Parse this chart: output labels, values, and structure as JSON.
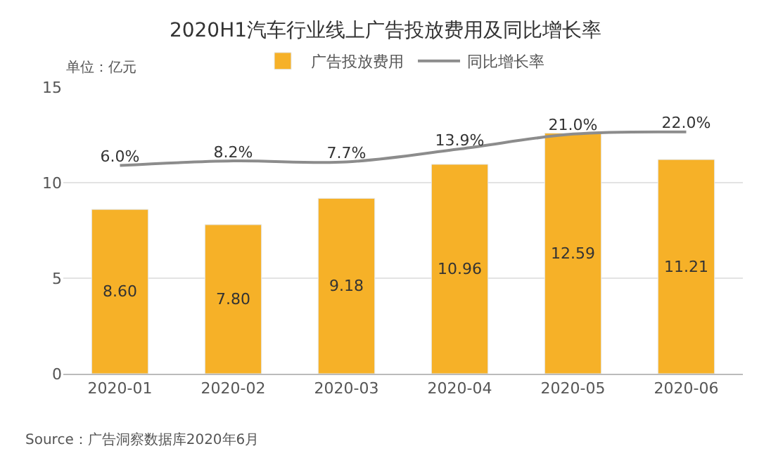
{
  "chart_data": {
    "type": "bar",
    "title": "2020H1汽车行业线上广告投放费用及同比增长率",
    "categories": [
      "2020-01",
      "2020-02",
      "2020-03",
      "2020-04",
      "2020-05",
      "2020-06"
    ],
    "series": [
      {
        "name": "广告投放费用",
        "color": "#f6b128",
        "values": [
          8.6,
          7.8,
          9.18,
          10.96,
          12.59,
          11.21
        ],
        "value_labels": [
          "8.60",
          "7.80",
          "9.18",
          "10.96",
          "12.59",
          "11.21"
        ]
      },
      {
        "name": "同比增长率",
        "type": "line",
        "axis": "y2",
        "color": "#8c8c8c",
        "values": [
          6.0,
          8.2,
          7.7,
          13.9,
          21.0,
          22.0
        ],
        "value_labels": [
          "6.0%",
          "8.2%",
          "7.7%",
          "13.9%",
          "21.0%",
          "22.0%"
        ]
      }
    ],
    "ylim": [
      0,
      15
    ],
    "yticks": [
      0,
      5,
      10,
      15
    ],
    "grid": "y",
    "legend": "top",
    "marker": "none",
    "line_style": "solid",
    "annotations": [
      "单位：亿元",
      "Source：广告洞察数据库2020年6月"
    ]
  }
}
